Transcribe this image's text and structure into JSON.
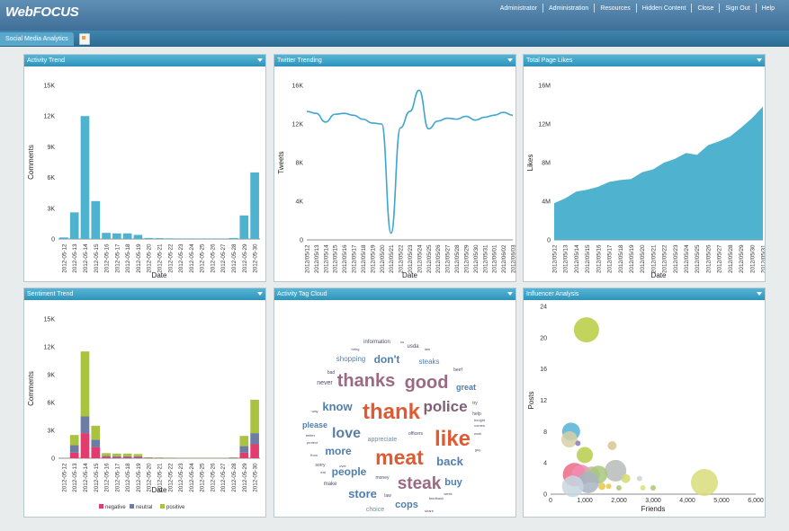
{
  "app": {
    "title": "WebFOCUS",
    "menu": [
      "Administrator",
      "Administration",
      "Resources",
      "Hidden Content",
      "Close",
      "Sign Out",
      "Help"
    ]
  },
  "tabs": [
    {
      "label": "Social Media Analytics"
    }
  ],
  "colors": {
    "header": "#4a7ea5",
    "tabbar": "#3a7ca5",
    "panel_header": "#3ba3c8",
    "bar": "#4fb3cf",
    "negative": "#e23b6e",
    "neutral": "#6d7ca3",
    "positive": "#a9c23f"
  },
  "panels": {
    "activity_trend": {
      "title": "Activity Trend"
    },
    "twitter_trending": {
      "title": "Twitter Trending"
    },
    "total_page_likes": {
      "title": "Total Page Likes"
    },
    "sentiment_trend": {
      "title": "Sentiment Trend"
    },
    "activity_tag_cloud": {
      "title": "Activity Tag Cloud"
    },
    "influencer_analysis": {
      "title": "Influencer Analysis"
    }
  },
  "chart_data": [
    {
      "id": "activity",
      "type": "bar",
      "xlabel": "Date",
      "ylabel": "Comments",
      "ylim": [
        0,
        15000
      ],
      "yticks": [
        0,
        3000,
        6000,
        9000,
        12000,
        15000
      ],
      "ytick_labels": [
        "0",
        "3K",
        "6K",
        "9K",
        "12K",
        "15K"
      ],
      "categories": [
        "2012-05-12",
        "2012-05-13",
        "2012-05-14",
        "2012-05-15",
        "2012-05-16",
        "2012-05-17",
        "2012-05-18",
        "2012-05-19",
        "2012-05-20",
        "2012-05-21",
        "2012-05-22",
        "2012-05-23",
        "2012-05-24",
        "2012-05-25",
        "2012-05-26",
        "2012-05-27",
        "2012-05-28",
        "2012-05-29",
        "2012-05-30"
      ],
      "values": [
        150,
        2600,
        12000,
        3700,
        600,
        550,
        550,
        400,
        100,
        80,
        60,
        50,
        50,
        50,
        50,
        50,
        100,
        2300,
        6500
      ]
    },
    {
      "id": "twitter",
      "type": "line",
      "xlabel": "Date",
      "ylabel": "Tweets",
      "ylim": [
        0,
        16000
      ],
      "yticks": [
        0,
        4000,
        8000,
        12000,
        16000
      ],
      "ytick_labels": [
        "0",
        "4K",
        "8K",
        "12K",
        "16K"
      ],
      "categories": [
        "2012/05/12",
        "2012/05/13",
        "2012/05/14",
        "2012/05/15",
        "2012/05/16",
        "2012/05/17",
        "2012/05/18",
        "2012/05/19",
        "2012/05/20",
        "2012/05/21",
        "2012/05/22",
        "2012/05/23",
        "2012/05/24",
        "2012/05/25",
        "2012/05/26",
        "2012/05/27",
        "2012/05/28",
        "2012/05/29",
        "2012/05/30",
        "2012/05/31",
        "2012/06/01",
        "2012/06/02",
        "2012/06/03"
      ],
      "values": [
        13300,
        13100,
        12200,
        13000,
        13100,
        12900,
        12500,
        12100,
        12000,
        700,
        11600,
        13300,
        15500,
        11500,
        12300,
        12600,
        12500,
        12800,
        12400,
        12700,
        12900,
        13200,
        12900
      ]
    },
    {
      "id": "likes",
      "type": "area",
      "xlabel": "Date",
      "ylabel": "Likes",
      "ylim": [
        0,
        16000000
      ],
      "yticks": [
        0,
        4000000,
        8000000,
        12000000,
        16000000
      ],
      "ytick_labels": [
        "0",
        "4M",
        "8M",
        "12M",
        "16M"
      ],
      "categories": [
        "2012/05/12",
        "2012/05/13",
        "2012/05/14",
        "2012/05/15",
        "2012/05/16",
        "2012/05/17",
        "2012/05/18",
        "2012/05/19",
        "2012/05/20",
        "2012/05/21",
        "2012/05/22",
        "2012/05/23",
        "2012/05/24",
        "2012/05/25",
        "2012/05/26",
        "2012/05/27",
        "2012/05/28",
        "2012/05/29",
        "2012/05/30",
        "2012/05/31"
      ],
      "values": [
        3800000,
        4300000,
        5000000,
        5200000,
        5500000,
        6000000,
        6200000,
        6300000,
        7000000,
        7300000,
        8000000,
        8400000,
        9000000,
        8800000,
        9800000,
        10200000,
        10700000,
        11600000,
        12600000,
        13800000
      ]
    },
    {
      "id": "sentiment",
      "type": "bar",
      "stacked": true,
      "xlabel": "Date",
      "ylabel": "Comments",
      "ylim": [
        0,
        15000
      ],
      "yticks": [
        0,
        3000,
        6000,
        9000,
        12000,
        15000
      ],
      "ytick_labels": [
        "0",
        "3K",
        "6K",
        "9K",
        "12K",
        "15K"
      ],
      "legend": "bottom",
      "categories": [
        "2012-05-12",
        "2012-05-13",
        "2012-05-14",
        "2012-05-15",
        "2012-05-16",
        "2012-05-17",
        "2012-05-18",
        "2012-05-19",
        "2012-05-20",
        "2012-05-21",
        "2012-05-22",
        "2012-05-23",
        "2012-05-24",
        "2012-05-25",
        "2012-05-26",
        "2012-05-27",
        "2012-05-28",
        "2012-05-29",
        "2012-05-30"
      ],
      "series": [
        {
          "name": "negative",
          "values": [
            0,
            600,
            2700,
            1200,
            150,
            100,
            100,
            100,
            30,
            20,
            10,
            10,
            10,
            10,
            10,
            10,
            30,
            600,
            1500
          ]
        },
        {
          "name": "neutral",
          "values": [
            0,
            800,
            1800,
            800,
            100,
            100,
            100,
            100,
            20,
            20,
            20,
            10,
            10,
            10,
            10,
            10,
            30,
            700,
            1200
          ]
        },
        {
          "name": "positive",
          "values": [
            0,
            1100,
            7000,
            1500,
            300,
            300,
            300,
            250,
            50,
            40,
            30,
            30,
            30,
            30,
            30,
            30,
            40,
            1100,
            3600
          ]
        }
      ]
    },
    {
      "id": "influencers",
      "type": "scatter",
      "xlabel": "Friends",
      "ylabel": "Posts",
      "xlim": [
        0,
        6000
      ],
      "ylim": [
        0,
        24
      ],
      "xticks": [
        0,
        1000,
        2000,
        3000,
        4000,
        5000,
        6000
      ],
      "xtick_labels": [
        "0",
        "1,000",
        "2,000",
        "3,000",
        "4,000",
        "5,000",
        "6,000"
      ],
      "yticks": [
        0,
        4,
        8,
        12,
        16,
        20,
        24
      ],
      "ytick_labels": [
        "0",
        "4",
        "8",
        "12",
        "16",
        "20",
        "24"
      ],
      "points": [
        {
          "x": 1050,
          "y": 21,
          "r": 14,
          "color": "#b9cc3f"
        },
        {
          "x": 4500,
          "y": 1.5,
          "r": 15,
          "color": "#d8dc7a"
        },
        {
          "x": 600,
          "y": 8,
          "r": 10,
          "color": "#56b2d6"
        },
        {
          "x": 550,
          "y": 7,
          "r": 9,
          "color": "#d7d1a6"
        },
        {
          "x": 1900,
          "y": 3,
          "r": 12,
          "color": "#b7bcb8"
        },
        {
          "x": 1000,
          "y": 5,
          "r": 9,
          "color": "#b6cc4a"
        },
        {
          "x": 700,
          "y": 2.5,
          "r": 13,
          "color": "#ec6a86"
        },
        {
          "x": 900,
          "y": 2.5,
          "r": 11,
          "color": "#f08db0"
        },
        {
          "x": 1200,
          "y": 2.5,
          "r": 9,
          "color": "#c4b7a2"
        },
        {
          "x": 1400,
          "y": 2.5,
          "r": 10,
          "color": "#a7c77b"
        },
        {
          "x": 1100,
          "y": 1.5,
          "r": 12,
          "color": "#a8b4c0"
        },
        {
          "x": 650,
          "y": 1,
          "r": 12,
          "color": "#c7d6e0"
        },
        {
          "x": 1800,
          "y": 6.2,
          "r": 5,
          "color": "#d8c594"
        },
        {
          "x": 800,
          "y": 6.5,
          "r": 3,
          "color": "#8a7bb7"
        },
        {
          "x": 2200,
          "y": 2,
          "r": 5,
          "color": "#d3d96c"
        },
        {
          "x": 1500,
          "y": 1,
          "r": 4,
          "color": "#e9c84a"
        },
        {
          "x": 1700,
          "y": 1,
          "r": 3,
          "color": "#e9c84a"
        },
        {
          "x": 2600,
          "y": 2,
          "r": 3,
          "color": "#cfd2d6"
        },
        {
          "x": 2700,
          "y": 0.8,
          "r": 3,
          "color": "#d8e07c"
        },
        {
          "x": 3000,
          "y": 0.8,
          "r": 3,
          "color": "#a8c86f"
        },
        {
          "x": 2000,
          "y": 0.8,
          "r": 3,
          "color": "#a8c86f"
        }
      ]
    }
  ],
  "tag_cloud": [
    {
      "text": "information",
      "x": 114,
      "y": 48,
      "size": 6,
      "color": "#4c4c6e"
    },
    {
      "text": "us",
      "x": 142,
      "y": 48,
      "size": 4,
      "color": "#4c4c6e"
    },
    {
      "text": "usda",
      "x": 154,
      "y": 53,
      "size": 6,
      "color": "#4c4c6e"
    },
    {
      "text": "law",
      "x": 170,
      "y": 56,
      "size": 4,
      "color": "#4c4c6e"
    },
    {
      "text": "bring",
      "x": 90,
      "y": 56,
      "size": 4,
      "color": "#4c4c6e"
    },
    {
      "text": "shopping",
      "x": 85,
      "y": 68,
      "size": 8,
      "color": "#5a7ea3"
    },
    {
      "text": "don't",
      "x": 125,
      "y": 70,
      "size": 12,
      "color": "#4f7fb0"
    },
    {
      "text": "steaks",
      "x": 172,
      "y": 71,
      "size": 8,
      "color": "#4f7fb0"
    },
    {
      "text": "beef",
      "x": 204,
      "y": 79,
      "size": 5,
      "color": "#4c4c6e"
    },
    {
      "text": "bad",
      "x": 63,
      "y": 82,
      "size": 5,
      "color": "#4c4c6e"
    },
    {
      "text": "thanks",
      "x": 102,
      "y": 96,
      "size": 20,
      "color": "#9a6a83"
    },
    {
      "text": "good",
      "x": 169,
      "y": 98,
      "size": 20,
      "color": "#9a6a83"
    },
    {
      "text": "never",
      "x": 56,
      "y": 94,
      "size": 7,
      "color": "#4c4c6e"
    },
    {
      "text": "great",
      "x": 213,
      "y": 100,
      "size": 9,
      "color": "#4f7fb0"
    },
    {
      "text": "try",
      "x": 223,
      "y": 116,
      "size": 5,
      "color": "#4c4c6e"
    },
    {
      "text": "police",
      "x": 190,
      "y": 124,
      "size": 17,
      "color": "#7e5f74"
    },
    {
      "text": "know",
      "x": 70,
      "y": 123,
      "size": 13,
      "color": "#4f7fb0"
    },
    {
      "text": "thank",
      "x": 130,
      "y": 132,
      "size": 24,
      "color": "#e05a32"
    },
    {
      "text": "way",
      "x": 45,
      "y": 125,
      "size": 4,
      "color": "#4c4c6e"
    },
    {
      "text": "help",
      "x": 225,
      "y": 128,
      "size": 5,
      "color": "#4c4c6e"
    },
    {
      "text": "bought",
      "x": 228,
      "y": 135,
      "size": 4,
      "color": "#4c4c6e"
    },
    {
      "text": "please",
      "x": 45,
      "y": 142,
      "size": 9,
      "color": "#4f7fb0"
    },
    {
      "text": "comes",
      "x": 228,
      "y": 141,
      "size": 4,
      "color": "#4c4c6e"
    },
    {
      "text": "love",
      "x": 80,
      "y": 153,
      "size": 16,
      "color": "#5a7ea3"
    },
    {
      "text": "appreciate",
      "x": 120,
      "y": 157,
      "size": 7,
      "color": "#6d8fa3"
    },
    {
      "text": "officers",
      "x": 157,
      "y": 150,
      "size": 5,
      "color": "#4c4c6e"
    },
    {
      "text": "like",
      "x": 198,
      "y": 162,
      "size": 24,
      "color": "#e05a32"
    },
    {
      "text": "work",
      "x": 226,
      "y": 150,
      "size": 4,
      "color": "#4c4c6e"
    },
    {
      "text": "better",
      "x": 40,
      "y": 152,
      "size": 4,
      "color": "#4c4c6e"
    },
    {
      "text": "protect",
      "x": 42,
      "y": 160,
      "size": 4,
      "color": "#4c4c6e"
    },
    {
      "text": "meat",
      "x": 139,
      "y": 183,
      "size": 23,
      "color": "#e05a32"
    },
    {
      "text": "more",
      "x": 71,
      "y": 172,
      "size": 12,
      "color": "#4f7fb0"
    },
    {
      "text": "guy",
      "x": 226,
      "y": 168,
      "size": 4,
      "color": "#4c4c6e"
    },
    {
      "text": "from",
      "x": 44,
      "y": 174,
      "size": 4,
      "color": "#4c4c6e"
    },
    {
      "text": "back",
      "x": 195,
      "y": 184,
      "size": 13,
      "color": "#4f7fb0"
    },
    {
      "text": "sorry",
      "x": 51,
      "y": 185,
      "size": 5,
      "color": "#4c4c6e"
    },
    {
      "text": "over",
      "x": 76,
      "y": 186,
      "size": 4,
      "color": "#4c4c6e"
    },
    {
      "text": "eat",
      "x": 54,
      "y": 193,
      "size": 4,
      "color": "#4c4c6e"
    },
    {
      "text": "people",
      "x": 83,
      "y": 195,
      "size": 12,
      "color": "#4f7fb0"
    },
    {
      "text": "money",
      "x": 120,
      "y": 199,
      "size": 5,
      "color": "#4c4c6e"
    },
    {
      "text": "steak",
      "x": 161,
      "y": 210,
      "size": 19,
      "color": "#9a6a83"
    },
    {
      "text": "buy",
      "x": 199,
      "y": 206,
      "size": 11,
      "color": "#4f7fb0"
    },
    {
      "text": "make",
      "x": 62,
      "y": 206,
      "size": 6,
      "color": "#4c4c6e"
    },
    {
      "text": "store",
      "x": 98,
      "y": 220,
      "size": 13,
      "color": "#4f7fb0"
    },
    {
      "text": "law",
      "x": 126,
      "y": 219,
      "size": 5,
      "color": "#4c4c6e"
    },
    {
      "text": "feedback",
      "x": 180,
      "y": 222,
      "size": 4,
      "color": "#4c4c6e"
    },
    {
      "text": "week",
      "x": 193,
      "y": 217,
      "size": 4,
      "color": "#4c4c6e"
    },
    {
      "text": "cops",
      "x": 147,
      "y": 231,
      "size": 11,
      "color": "#4f7fb0"
    },
    {
      "text": "choice",
      "x": 112,
      "y": 235,
      "size": 7,
      "color": "#6d8fa3"
    },
    {
      "text": "share",
      "x": 172,
      "y": 236,
      "size": 4,
      "color": "#4c4c6e"
    }
  ]
}
